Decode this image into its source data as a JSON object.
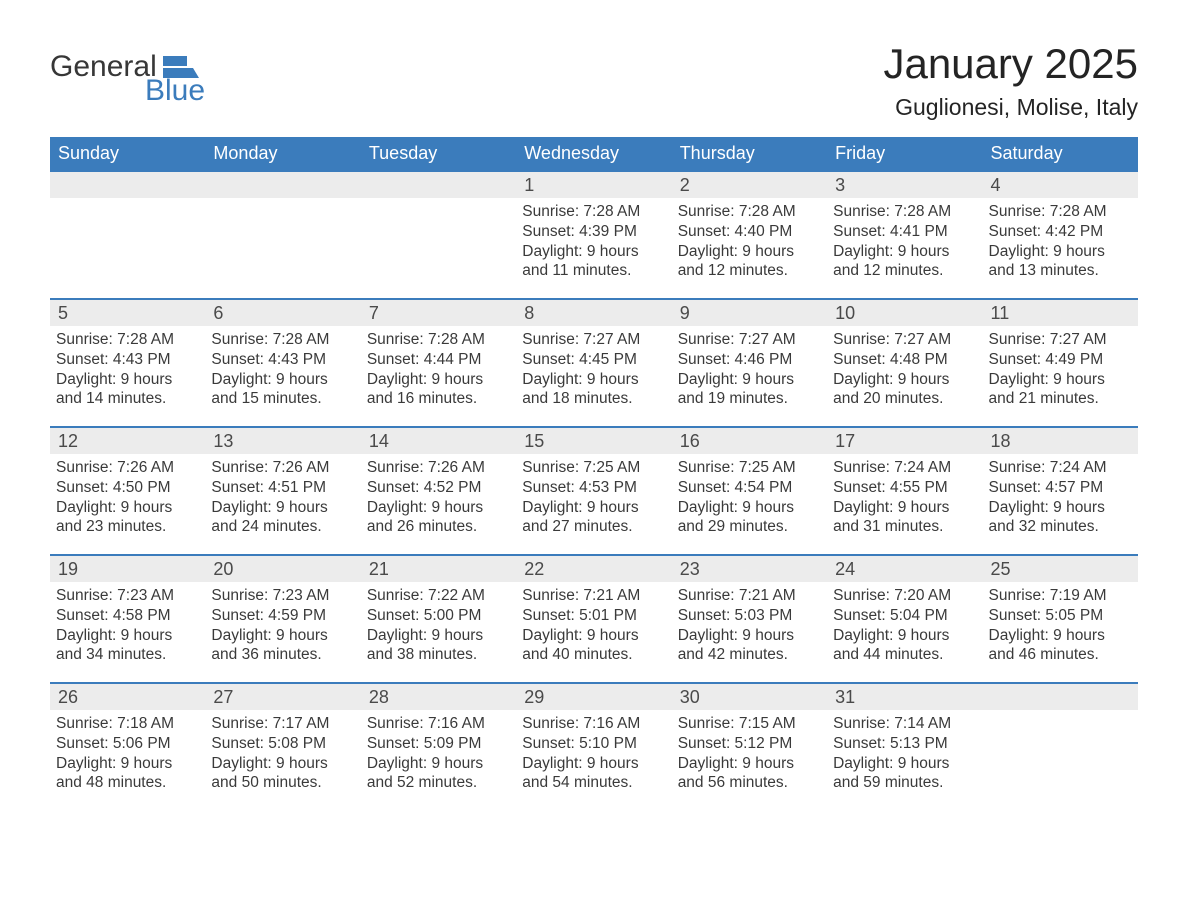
{
  "logo": {
    "word1": "General",
    "word2": "Blue"
  },
  "colors": {
    "brand_blue": "#3b7cbc",
    "header_bg": "#3b7cbc",
    "header_text": "#ffffff",
    "daynum_bg": "#ececec",
    "daynum_text": "#4a4a4a",
    "body_text": "#3a3a3a",
    "page_bg": "#ffffff",
    "title_text": "#242424"
  },
  "title": {
    "month": "January 2025",
    "location": "Guglionesi, Molise, Italy"
  },
  "weekdays": [
    "Sunday",
    "Monday",
    "Tuesday",
    "Wednesday",
    "Thursday",
    "Friday",
    "Saturday"
  ],
  "calendar": {
    "rows": 5,
    "cols": 7,
    "title_fontsize": 42,
    "location_fontsize": 23,
    "weekday_fontsize": 18,
    "daynum_fontsize": 18,
    "body_fontsize": 15.5,
    "row_divider_color": "#3b7cbc",
    "row_divider_width": 2
  },
  "days": [
    [
      {
        "n": "",
        "sunrise": "",
        "sunset": "",
        "daylight": ""
      },
      {
        "n": "",
        "sunrise": "",
        "sunset": "",
        "daylight": ""
      },
      {
        "n": "",
        "sunrise": "",
        "sunset": "",
        "daylight": ""
      },
      {
        "n": "1",
        "sunrise": "Sunrise: 7:28 AM",
        "sunset": "Sunset: 4:39 PM",
        "daylight": "Daylight: 9 hours and 11 minutes."
      },
      {
        "n": "2",
        "sunrise": "Sunrise: 7:28 AM",
        "sunset": "Sunset: 4:40 PM",
        "daylight": "Daylight: 9 hours and 12 minutes."
      },
      {
        "n": "3",
        "sunrise": "Sunrise: 7:28 AM",
        "sunset": "Sunset: 4:41 PM",
        "daylight": "Daylight: 9 hours and 12 minutes."
      },
      {
        "n": "4",
        "sunrise": "Sunrise: 7:28 AM",
        "sunset": "Sunset: 4:42 PM",
        "daylight": "Daylight: 9 hours and 13 minutes."
      }
    ],
    [
      {
        "n": "5",
        "sunrise": "Sunrise: 7:28 AM",
        "sunset": "Sunset: 4:43 PM",
        "daylight": "Daylight: 9 hours and 14 minutes."
      },
      {
        "n": "6",
        "sunrise": "Sunrise: 7:28 AM",
        "sunset": "Sunset: 4:43 PM",
        "daylight": "Daylight: 9 hours and 15 minutes."
      },
      {
        "n": "7",
        "sunrise": "Sunrise: 7:28 AM",
        "sunset": "Sunset: 4:44 PM",
        "daylight": "Daylight: 9 hours and 16 minutes."
      },
      {
        "n": "8",
        "sunrise": "Sunrise: 7:27 AM",
        "sunset": "Sunset: 4:45 PM",
        "daylight": "Daylight: 9 hours and 18 minutes."
      },
      {
        "n": "9",
        "sunrise": "Sunrise: 7:27 AM",
        "sunset": "Sunset: 4:46 PM",
        "daylight": "Daylight: 9 hours and 19 minutes."
      },
      {
        "n": "10",
        "sunrise": "Sunrise: 7:27 AM",
        "sunset": "Sunset: 4:48 PM",
        "daylight": "Daylight: 9 hours and 20 minutes."
      },
      {
        "n": "11",
        "sunrise": "Sunrise: 7:27 AM",
        "sunset": "Sunset: 4:49 PM",
        "daylight": "Daylight: 9 hours and 21 minutes."
      }
    ],
    [
      {
        "n": "12",
        "sunrise": "Sunrise: 7:26 AM",
        "sunset": "Sunset: 4:50 PM",
        "daylight": "Daylight: 9 hours and 23 minutes."
      },
      {
        "n": "13",
        "sunrise": "Sunrise: 7:26 AM",
        "sunset": "Sunset: 4:51 PM",
        "daylight": "Daylight: 9 hours and 24 minutes."
      },
      {
        "n": "14",
        "sunrise": "Sunrise: 7:26 AM",
        "sunset": "Sunset: 4:52 PM",
        "daylight": "Daylight: 9 hours and 26 minutes."
      },
      {
        "n": "15",
        "sunrise": "Sunrise: 7:25 AM",
        "sunset": "Sunset: 4:53 PM",
        "daylight": "Daylight: 9 hours and 27 minutes."
      },
      {
        "n": "16",
        "sunrise": "Sunrise: 7:25 AM",
        "sunset": "Sunset: 4:54 PM",
        "daylight": "Daylight: 9 hours and 29 minutes."
      },
      {
        "n": "17",
        "sunrise": "Sunrise: 7:24 AM",
        "sunset": "Sunset: 4:55 PM",
        "daylight": "Daylight: 9 hours and 31 minutes."
      },
      {
        "n": "18",
        "sunrise": "Sunrise: 7:24 AM",
        "sunset": "Sunset: 4:57 PM",
        "daylight": "Daylight: 9 hours and 32 minutes."
      }
    ],
    [
      {
        "n": "19",
        "sunrise": "Sunrise: 7:23 AM",
        "sunset": "Sunset: 4:58 PM",
        "daylight": "Daylight: 9 hours and 34 minutes."
      },
      {
        "n": "20",
        "sunrise": "Sunrise: 7:23 AM",
        "sunset": "Sunset: 4:59 PM",
        "daylight": "Daylight: 9 hours and 36 minutes."
      },
      {
        "n": "21",
        "sunrise": "Sunrise: 7:22 AM",
        "sunset": "Sunset: 5:00 PM",
        "daylight": "Daylight: 9 hours and 38 minutes."
      },
      {
        "n": "22",
        "sunrise": "Sunrise: 7:21 AM",
        "sunset": "Sunset: 5:01 PM",
        "daylight": "Daylight: 9 hours and 40 minutes."
      },
      {
        "n": "23",
        "sunrise": "Sunrise: 7:21 AM",
        "sunset": "Sunset: 5:03 PM",
        "daylight": "Daylight: 9 hours and 42 minutes."
      },
      {
        "n": "24",
        "sunrise": "Sunrise: 7:20 AM",
        "sunset": "Sunset: 5:04 PM",
        "daylight": "Daylight: 9 hours and 44 minutes."
      },
      {
        "n": "25",
        "sunrise": "Sunrise: 7:19 AM",
        "sunset": "Sunset: 5:05 PM",
        "daylight": "Daylight: 9 hours and 46 minutes."
      }
    ],
    [
      {
        "n": "26",
        "sunrise": "Sunrise: 7:18 AM",
        "sunset": "Sunset: 5:06 PM",
        "daylight": "Daylight: 9 hours and 48 minutes."
      },
      {
        "n": "27",
        "sunrise": "Sunrise: 7:17 AM",
        "sunset": "Sunset: 5:08 PM",
        "daylight": "Daylight: 9 hours and 50 minutes."
      },
      {
        "n": "28",
        "sunrise": "Sunrise: 7:16 AM",
        "sunset": "Sunset: 5:09 PM",
        "daylight": "Daylight: 9 hours and 52 minutes."
      },
      {
        "n": "29",
        "sunrise": "Sunrise: 7:16 AM",
        "sunset": "Sunset: 5:10 PM",
        "daylight": "Daylight: 9 hours and 54 minutes."
      },
      {
        "n": "30",
        "sunrise": "Sunrise: 7:15 AM",
        "sunset": "Sunset: 5:12 PM",
        "daylight": "Daylight: 9 hours and 56 minutes."
      },
      {
        "n": "31",
        "sunrise": "Sunrise: 7:14 AM",
        "sunset": "Sunset: 5:13 PM",
        "daylight": "Daylight: 9 hours and 59 minutes."
      },
      {
        "n": "",
        "sunrise": "",
        "sunset": "",
        "daylight": ""
      }
    ]
  ]
}
